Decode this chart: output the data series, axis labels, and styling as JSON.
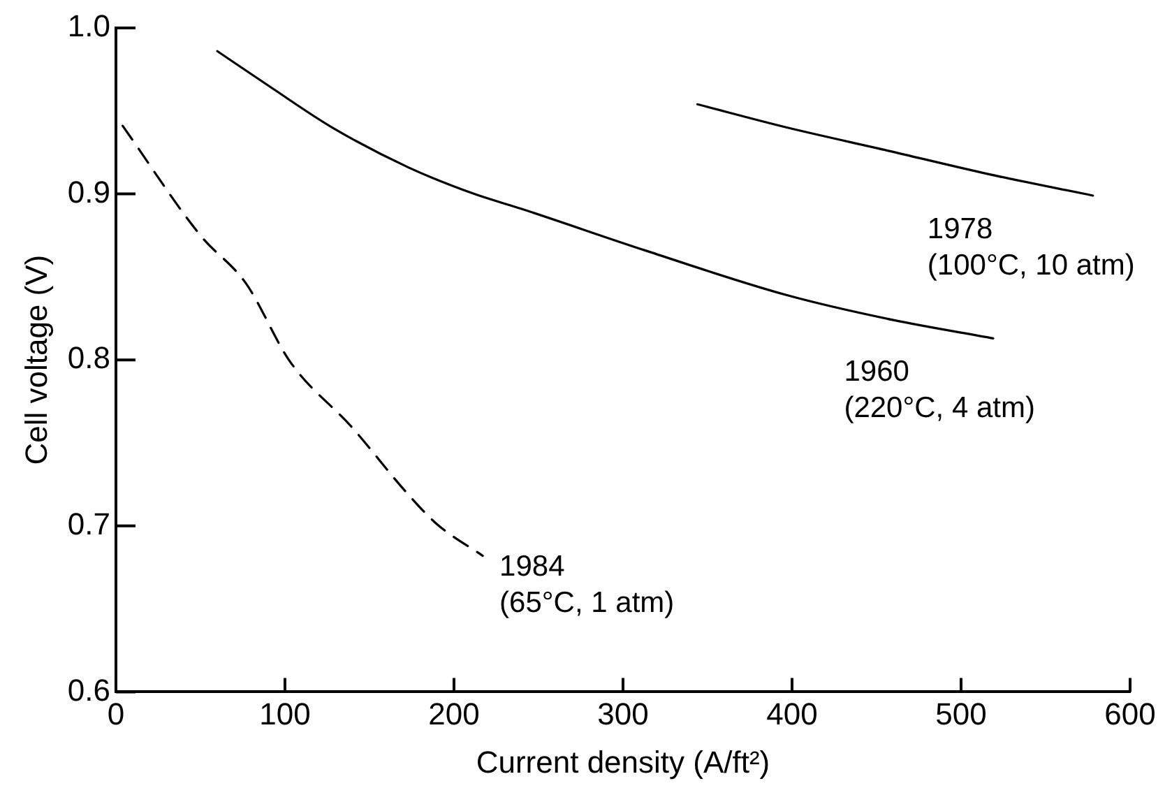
{
  "chart_data": {
    "type": "line",
    "xlabel": "Current density (A/ft²)",
    "ylabel": "Cell voltage (V)",
    "xlim": [
      0,
      600
    ],
    "xticks": [
      0,
      100,
      200,
      300,
      400,
      500,
      600
    ],
    "ylim": [
      0.6,
      1.0
    ],
    "yticks": [
      {
        "value": 0.6,
        "label": "0.6"
      },
      0.7,
      0.8,
      0.9,
      {
        "value": 1.0,
        "label": "1.0"
      }
    ],
    "grid": false,
    "marker": "none",
    "series": [
      {
        "name": "1960\n(220°C, 4 atm)",
        "color": "#000000",
        "line_style": "solid",
        "x": [
          60,
          92,
          128,
          173,
          212,
          240,
          313,
          397,
          460,
          519
        ],
        "values": [
          0.986,
          0.964,
          0.94,
          0.916,
          0.9,
          0.891,
          0.866,
          0.839,
          0.824,
          0.813
        ]
      },
      {
        "name": "1978\n(100°C, 10 atm)",
        "color": "#000000",
        "line_style": "solid",
        "x": [
          344,
          397,
          457,
          516,
          578
        ],
        "values": [
          0.954,
          0.94,
          0.926,
          0.912,
          0.899
        ]
      },
      {
        "name": "1984\n(65°C, 1 atm)",
        "color": "#000000",
        "line_style": "dashed",
        "x": [
          4,
          50,
          77,
          103,
          140,
          172,
          190,
          217
        ],
        "values": [
          0.941,
          0.875,
          0.846,
          0.799,
          0.759,
          0.72,
          0.701,
          0.682
        ]
      }
    ]
  }
}
